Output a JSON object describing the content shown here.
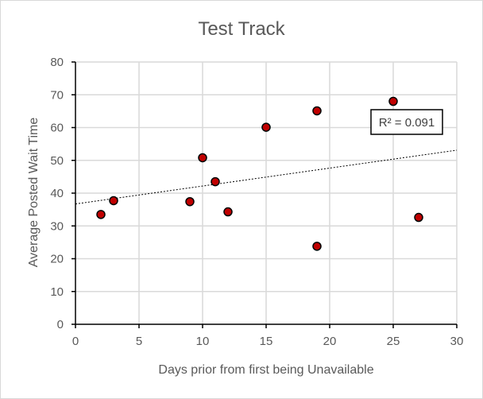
{
  "chart_data": {
    "type": "scatter",
    "title": "Test Track",
    "xlabel": "Days prior from first being Unavailable",
    "ylabel": "Average Posted Wait Time",
    "xlim": [
      0,
      30
    ],
    "ylim": [
      0,
      80
    ],
    "x_ticks": [
      0,
      5,
      10,
      15,
      20,
      25,
      30
    ],
    "y_ticks": [
      0,
      10,
      20,
      30,
      40,
      50,
      60,
      70,
      80
    ],
    "grid": true,
    "points": [
      {
        "x": 2,
        "y": 33.5
      },
      {
        "x": 3,
        "y": 37.7
      },
      {
        "x": 9,
        "y": 37.4
      },
      {
        "x": 10,
        "y": 50.8
      },
      {
        "x": 11,
        "y": 43.5
      },
      {
        "x": 12,
        "y": 34.3
      },
      {
        "x": 15,
        "y": 60.1
      },
      {
        "x": 19,
        "y": 65.1
      },
      {
        "x": 19,
        "y": 23.8
      },
      {
        "x": 25,
        "y": 68.0
      },
      {
        "x": 27,
        "y": 32.6
      }
    ],
    "trendline": {
      "type": "linear",
      "y_at_xmin": 36.7,
      "y_at_xmax": 53.1
    },
    "r_squared_label": "R² = 0.091",
    "colors": {
      "marker_fill": "#c00000",
      "marker_edge": "#000000",
      "grid": "#d9d9d9",
      "axis": "#000000"
    }
  }
}
